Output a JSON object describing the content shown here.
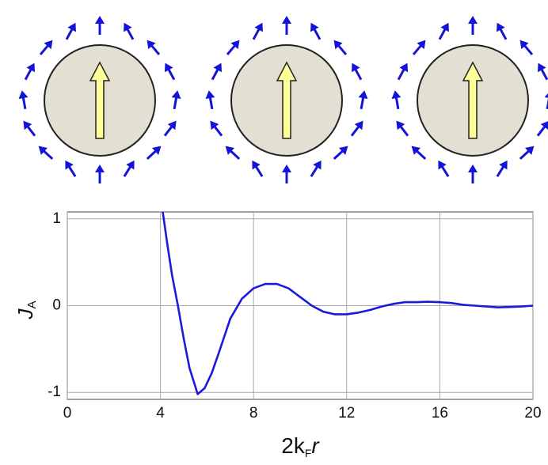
{
  "chart_data": {
    "type": "line",
    "xlabel": {
      "main": "2k",
      "sub": "F",
      "end": "r"
    },
    "ylabel": {
      "main": "J",
      "sub": "A"
    },
    "xlim": [
      0,
      20
    ],
    "ylim": [
      -1.08,
      1.08
    ],
    "xticks": [
      0,
      4,
      8,
      12,
      16,
      20
    ],
    "yticks": [
      -1,
      0,
      1
    ],
    "grid": true,
    "x": [
      4.1,
      4.3,
      4.5,
      4.75,
      5.0,
      5.25,
      5.6,
      5.9,
      6.2,
      6.5,
      7.0,
      7.5,
      8.0,
      8.5,
      9.0,
      9.5,
      10.0,
      10.5,
      11.0,
      11.5,
      12.0,
      12.5,
      13.0,
      13.5,
      14.0,
      14.5,
      15.0,
      15.5,
      16.0,
      16.5,
      17.0,
      17.5,
      18.0,
      18.5,
      19.0,
      19.5,
      20.0
    ],
    "series": [
      {
        "color": "#1a1adc",
        "values": [
          1.08,
          0.7,
          0.35,
          0.0,
          -0.38,
          -0.72,
          -1.02,
          -0.95,
          -0.78,
          -0.55,
          -0.15,
          0.08,
          0.2,
          0.25,
          0.25,
          0.2,
          0.1,
          0.0,
          -0.07,
          -0.1,
          -0.1,
          -0.08,
          -0.05,
          -0.01,
          0.02,
          0.04,
          0.04,
          0.045,
          0.04,
          0.03,
          0.01,
          0.0,
          -0.01,
          -0.02,
          -0.015,
          -0.01,
          0.0
        ]
      }
    ]
  }
}
